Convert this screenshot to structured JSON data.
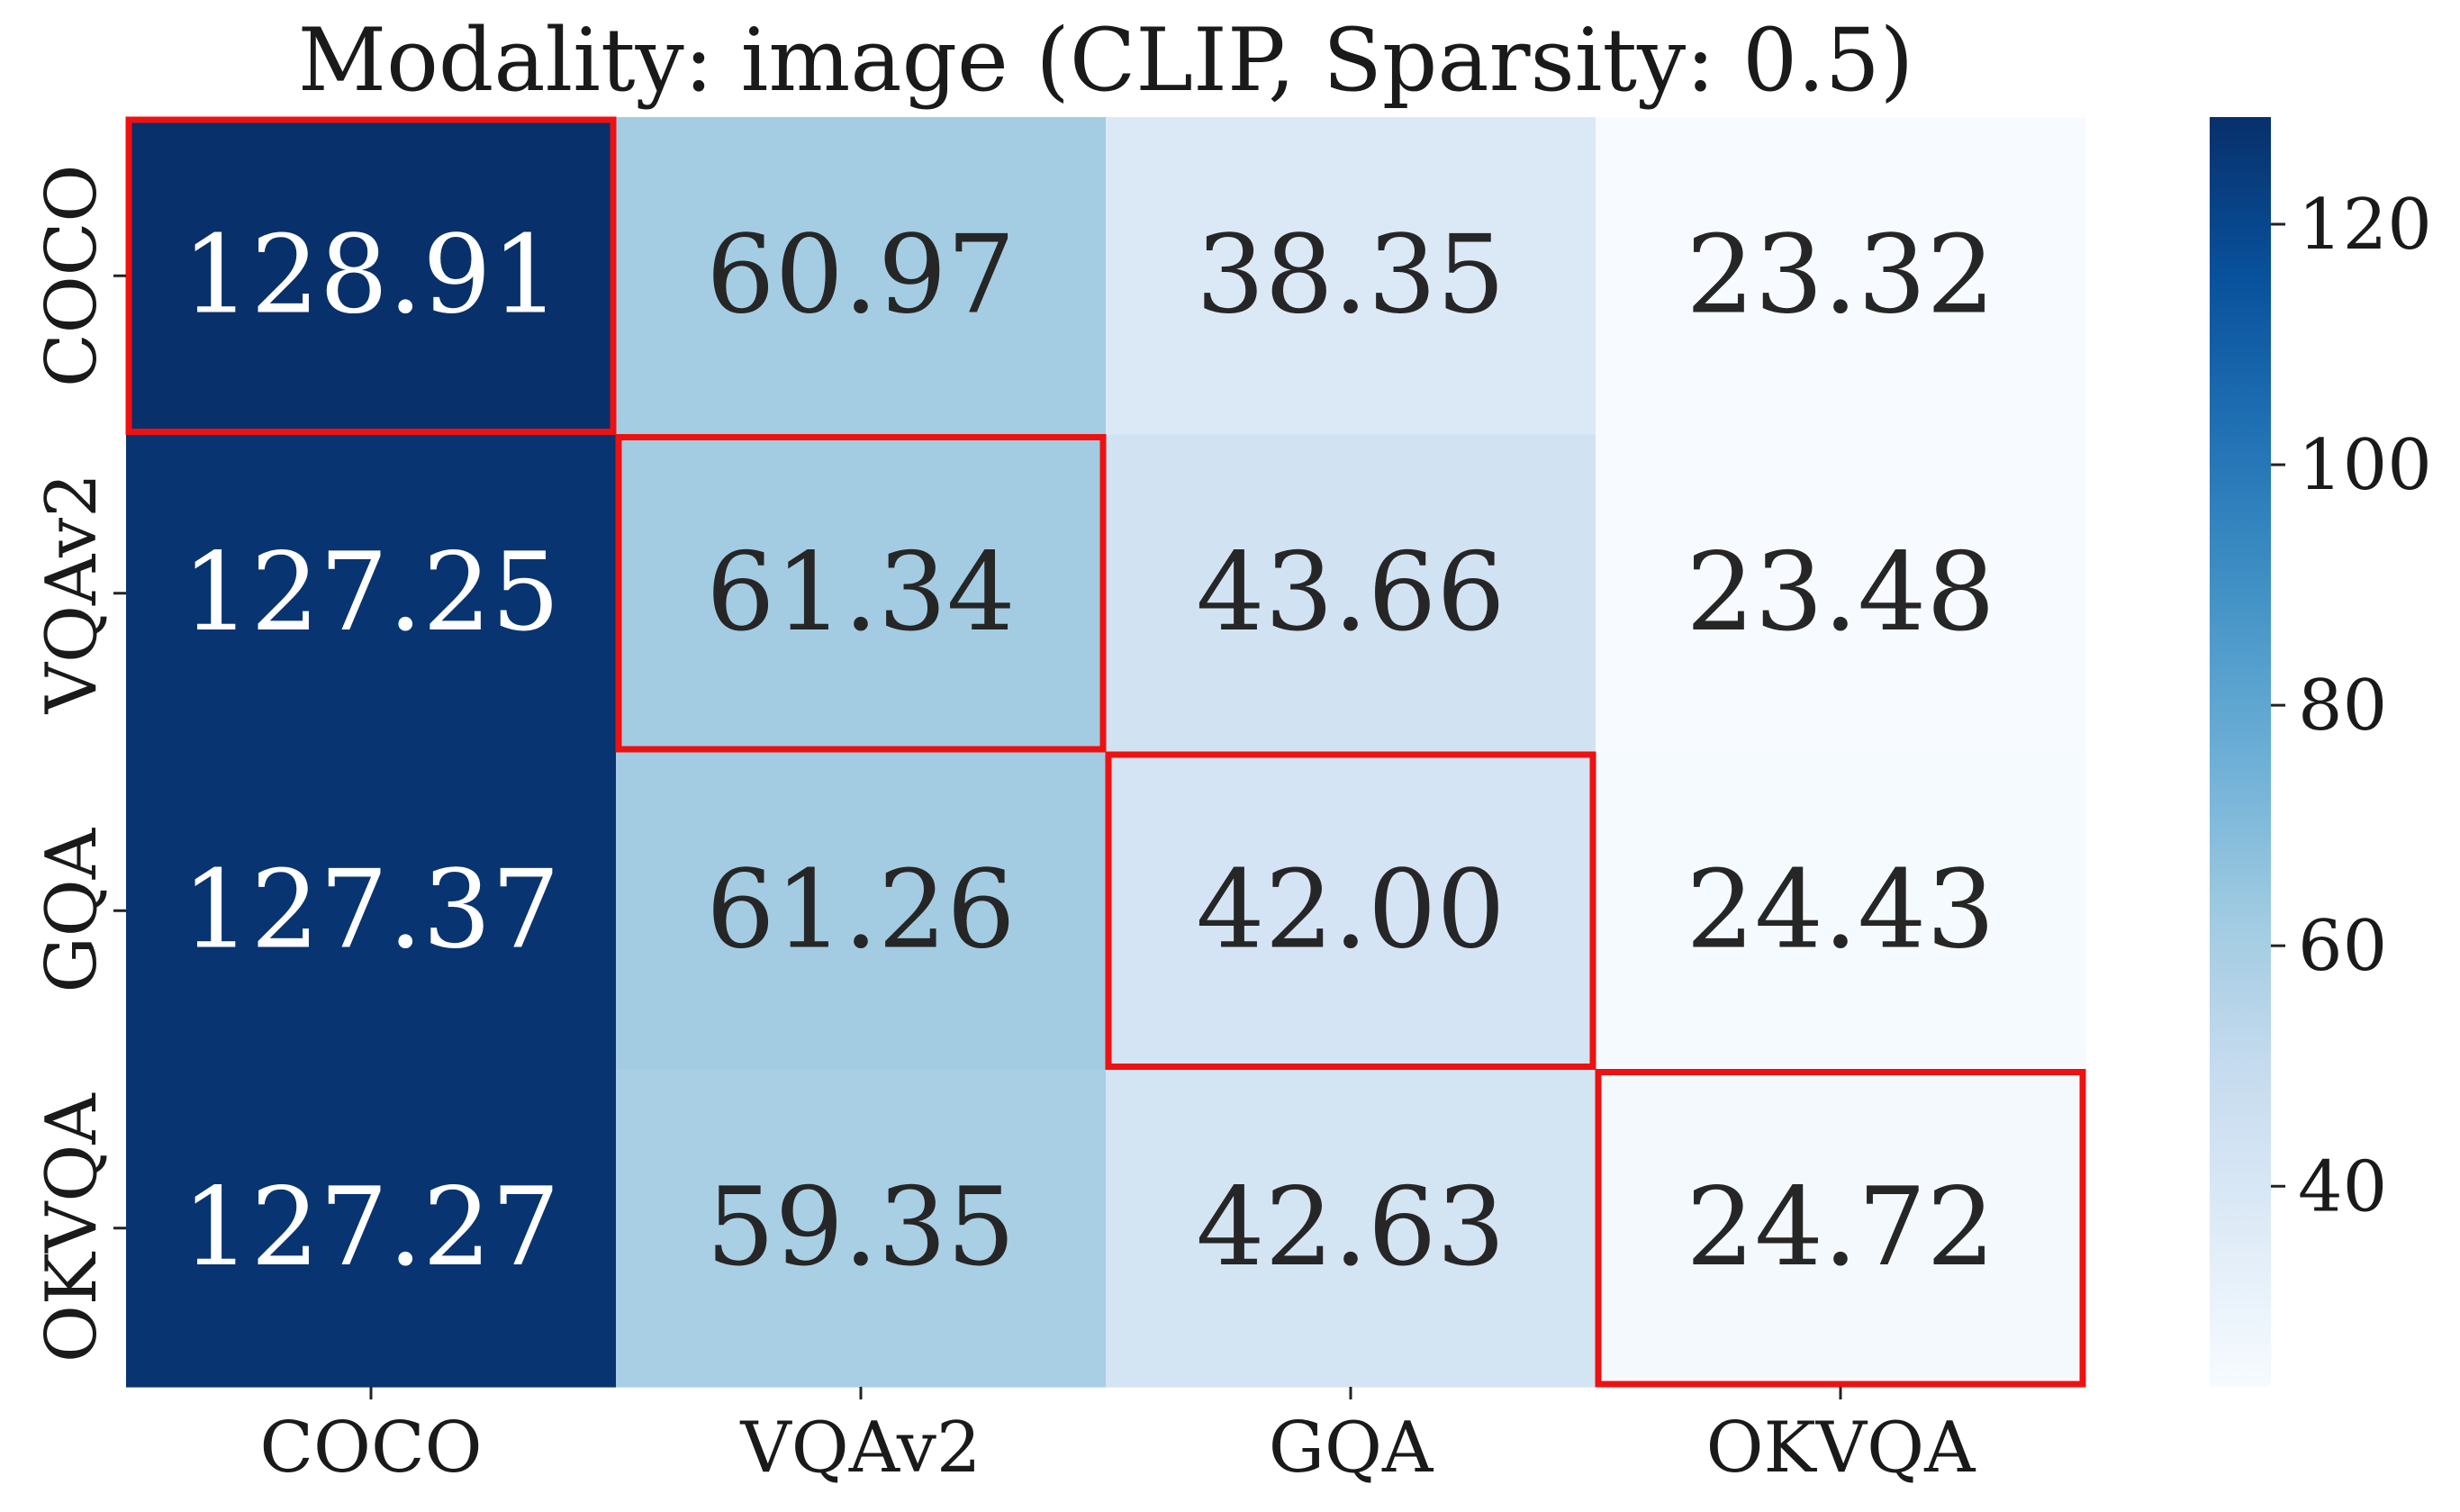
{
  "chart_data": {
    "type": "heatmap",
    "title": "Modality: image (CLIP, Sparsity: 0.5)",
    "xlabel": "",
    "ylabel": "",
    "x_categories": [
      "COCO",
      "VQAv2",
      "GQA",
      "OKVQA"
    ],
    "y_categories": [
      "COCO",
      "VQAv2",
      "GQA",
      "OKVQA"
    ],
    "values": [
      [
        128.91,
        60.97,
        38.35,
        23.32
      ],
      [
        127.25,
        61.34,
        43.66,
        23.48
      ],
      [
        127.37,
        61.26,
        42.0,
        24.43
      ],
      [
        127.27,
        59.35,
        42.63,
        24.72
      ]
    ],
    "value_format": "2 decimals",
    "colormap": "Blues",
    "colorbar": {
      "vmin": 23.32,
      "vmax": 128.91,
      "ticks": [
        40,
        60,
        80,
        100,
        120
      ]
    },
    "highlight": "diagonal cells outlined",
    "highlight_color": "#ee1111",
    "dark_text_color": "#262626",
    "light_text_color": "#ffffff"
  }
}
